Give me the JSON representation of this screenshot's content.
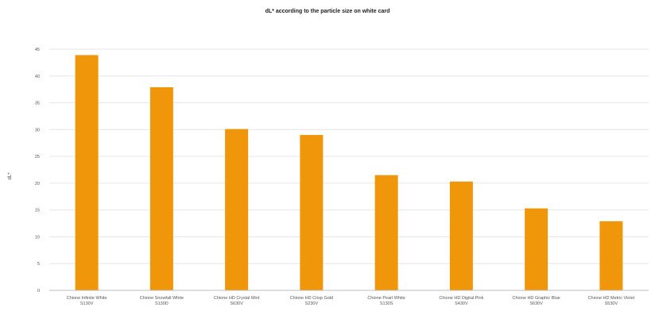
{
  "chart_data": {
    "type": "bar",
    "title": "dL* according to the particle size on white card",
    "xlabel": "",
    "ylabel": "dL*",
    "ylim": [
      0,
      45
    ],
    "yticks": [
      0,
      5,
      10,
      15,
      20,
      25,
      30,
      35,
      40,
      45
    ],
    "grid": true,
    "legend": "none",
    "bar_color": "#f0960a",
    "categories": [
      [
        "Chione Infinite White",
        "S130V"
      ],
      [
        "Chione Snowfall White",
        "S130D"
      ],
      [
        "Chione HD Crystal Mint",
        "S630V"
      ],
      [
        "Chione HD Crisp Gold",
        "S230V"
      ],
      [
        "Chione  Pearl White",
        "S130S"
      ],
      [
        "Chione HD Digital Pink",
        "S430V"
      ],
      [
        "Chione HD Graphic Blue",
        "S630V"
      ],
      [
        "Chione HD Metric Violet",
        "S530V"
      ]
    ],
    "values": [
      43.9,
      37.9,
      30.1,
      29.0,
      21.5,
      20.3,
      15.3,
      12.9
    ]
  }
}
